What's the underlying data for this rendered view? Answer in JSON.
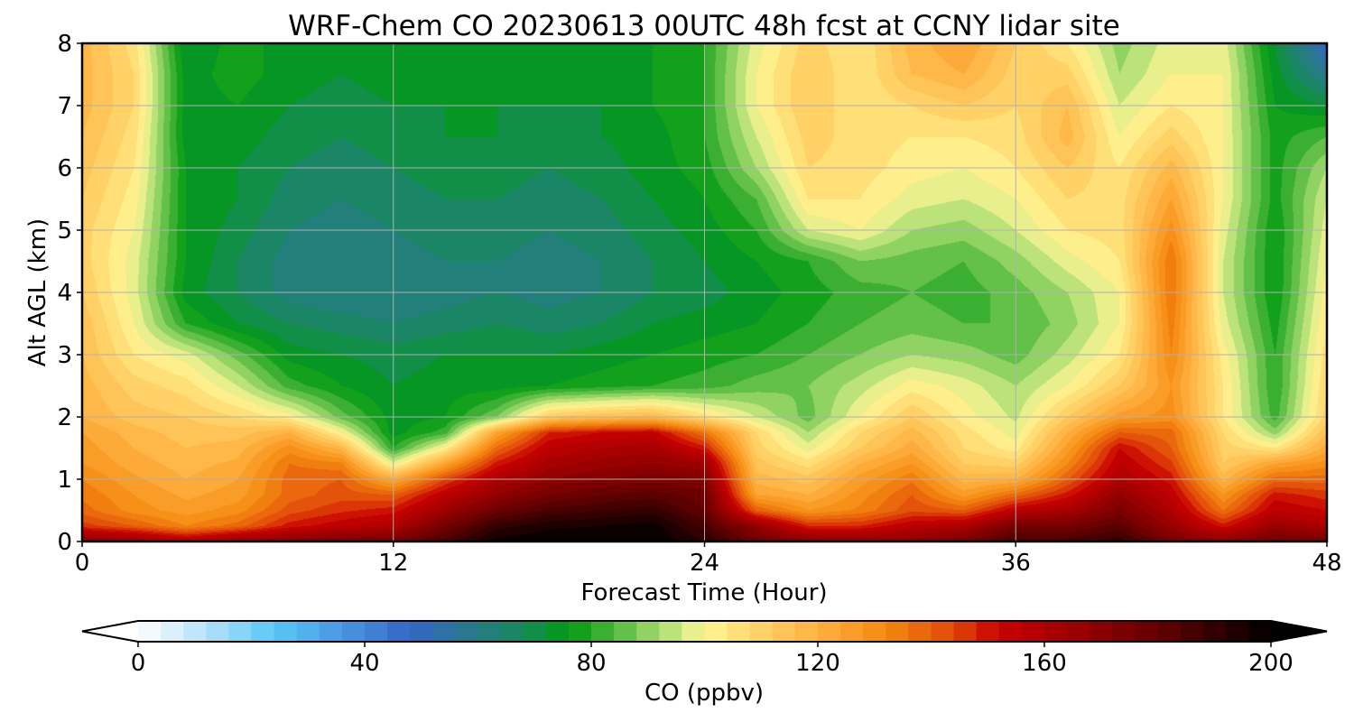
{
  "chart_data": {
    "type": "heatmap",
    "title": "WRF-Chem CO  20230613 00UTC 48h fcst at CCNY lidar site",
    "xlabel": "Forecast Time (Hour)",
    "ylabel": "Alt AGL (km)",
    "xlim": [
      0,
      48
    ],
    "ylim": [
      0,
      8
    ],
    "xticks": [
      0,
      12,
      24,
      36,
      48
    ],
    "yticks": [
      0,
      1,
      2,
      3,
      4,
      5,
      6,
      7,
      8
    ],
    "grid": true,
    "x": [
      0,
      2,
      4,
      6,
      8,
      10,
      12,
      14,
      16,
      18,
      20,
      22,
      24,
      26,
      28,
      30,
      32,
      34,
      36,
      38,
      40,
      42,
      44,
      46,
      48
    ],
    "y": [
      0,
      0.25,
      0.5,
      0.75,
      1,
      1.25,
      1.5,
      1.75,
      2,
      2.5,
      3,
      3.5,
      4,
      4.5,
      5,
      5.5,
      6,
      6.5,
      7,
      7.5,
      8
    ],
    "z": [
      [
        172,
        168,
        160,
        168,
        172,
        176,
        176,
        186,
        198,
        200,
        200,
        200,
        192,
        178,
        172,
        170,
        170,
        176,
        186,
        186,
        190,
        176,
        170,
        178,
        176
      ],
      [
        146,
        140,
        132,
        138,
        150,
        155,
        160,
        176,
        190,
        195,
        196,
        198,
        186,
        168,
        148,
        148,
        156,
        160,
        176,
        176,
        182,
        166,
        150,
        166,
        160
      ],
      [
        138,
        130,
        126,
        130,
        142,
        147,
        150,
        165,
        178,
        185,
        188,
        190,
        180,
        140,
        128,
        133,
        143,
        140,
        156,
        162,
        174,
        160,
        136,
        156,
        152
      ],
      [
        135,
        128,
        123,
        126,
        138,
        142,
        140,
        156,
        168,
        176,
        180,
        182,
        178,
        124,
        120,
        130,
        140,
        126,
        138,
        150,
        168,
        155,
        128,
        150,
        146
      ],
      [
        132,
        125,
        120,
        124,
        138,
        140,
        122,
        144,
        160,
        168,
        172,
        174,
        172,
        118,
        114,
        126,
        135,
        118,
        120,
        140,
        160,
        150,
        118,
        138,
        138
      ],
      [
        128,
        122,
        118,
        121,
        136,
        133,
        98,
        124,
        150,
        162,
        166,
        168,
        165,
        114,
        106,
        120,
        128,
        112,
        110,
        132,
        156,
        145,
        112,
        124,
        130
      ],
      [
        126,
        120,
        116,
        118,
        130,
        118,
        80,
        102,
        138,
        156,
        160,
        162,
        150,
        110,
        98,
        112,
        122,
        108,
        102,
        126,
        152,
        140,
        110,
        104,
        122
      ],
      [
        124,
        118,
        114,
        114,
        120,
        100,
        74,
        82,
        124,
        148,
        152,
        154,
        136,
        108,
        92,
        108,
        118,
        106,
        98,
        120,
        140,
        138,
        108,
        90,
        116
      ],
      [
        120,
        114,
        112,
        108,
        102,
        86,
        74,
        76,
        88,
        112,
        116,
        118,
        106,
        96,
        86,
        100,
        112,
        102,
        95,
        112,
        126,
        130,
        104,
        82,
        110
      ],
      [
        118,
        110,
        106,
        96,
        82,
        76,
        72,
        74,
        74,
        76,
        78,
        80,
        82,
        86,
        88,
        94,
        102,
        98,
        92,
        100,
        112,
        128,
        104,
        80,
        108
      ],
      [
        116,
        104,
        98,
        86,
        74,
        72,
        70,
        72,
        72,
        72,
        74,
        76,
        78,
        80,
        84,
        88,
        92,
        90,
        86,
        94,
        104,
        132,
        102,
        80,
        106
      ],
      [
        115,
        100,
        80,
        72,
        68,
        66,
        64,
        66,
        68,
        66,
        68,
        72,
        74,
        76,
        80,
        84,
        86,
        84,
        84,
        90,
        100,
        134,
        98,
        78,
        104
      ],
      [
        112,
        98,
        74,
        68,
        62,
        60,
        60,
        62,
        64,
        62,
        64,
        68,
        70,
        74,
        78,
        82,
        84,
        82,
        86,
        92,
        100,
        136,
        96,
        76,
        102
      ],
      [
        110,
        98,
        76,
        68,
        62,
        60,
        62,
        64,
        64,
        62,
        64,
        68,
        72,
        76,
        80,
        88,
        86,
        84,
        90,
        98,
        104,
        136,
        96,
        76,
        100
      ],
      [
        110,
        100,
        76,
        70,
        64,
        62,
        64,
        66,
        66,
        64,
        66,
        70,
        74,
        80,
        96,
        100,
        92,
        90,
        96,
        104,
        106,
        130,
        98,
        76,
        98
      ],
      [
        112,
        102,
        76,
        72,
        66,
        64,
        66,
        68,
        68,
        66,
        68,
        72,
        76,
        84,
        104,
        104,
        98,
        96,
        100,
        108,
        106,
        124,
        100,
        78,
        96
      ],
      [
        114,
        104,
        76,
        72,
        68,
        66,
        68,
        70,
        70,
        68,
        70,
        74,
        78,
        92,
        108,
        106,
        102,
        100,
        104,
        112,
        104,
        118,
        100,
        78,
        92
      ],
      [
        116,
        106,
        74,
        74,
        70,
        68,
        70,
        72,
        72,
        70,
        72,
        74,
        80,
        96,
        110,
        106,
        104,
        104,
        106,
        118,
        100,
        110,
        100,
        78,
        84
      ],
      [
        118,
        108,
        74,
        76,
        72,
        70,
        72,
        72,
        72,
        72,
        72,
        76,
        80,
        100,
        112,
        104,
        108,
        112,
        108,
        116,
        96,
        104,
        100,
        76,
        72
      ],
      [
        118,
        108,
        74,
        78,
        74,
        72,
        74,
        72,
        72,
        72,
        72,
        76,
        80,
        100,
        112,
        104,
        116,
        120,
        110,
        110,
        92,
        100,
        100,
        74,
        58
      ],
      [
        118,
        106,
        72,
        78,
        74,
        72,
        74,
        72,
        72,
        72,
        72,
        76,
        80,
        98,
        110,
        104,
        118,
        124,
        112,
        104,
        90,
        98,
        98,
        72,
        48
      ]
    ],
    "colorbar": {
      "label": "CO  (ppbv)",
      "min": 0,
      "max": 200,
      "step": 4,
      "ticks": [
        0,
        40,
        80,
        120,
        160,
        200
      ],
      "extend": "both",
      "stops": [
        {
          "v": 0,
          "c": "#ffffff"
        },
        {
          "v": 12,
          "c": "#b4e1fa"
        },
        {
          "v": 24,
          "c": "#5ac8f5"
        },
        {
          "v": 36,
          "c": "#4a97e2"
        },
        {
          "v": 48,
          "c": "#3366c6"
        },
        {
          "v": 58,
          "c": "#2a7890"
        },
        {
          "v": 68,
          "c": "#178a5a"
        },
        {
          "v": 76,
          "c": "#009a10"
        },
        {
          "v": 84,
          "c": "#4db63c"
        },
        {
          "v": 92,
          "c": "#a6dd70"
        },
        {
          "v": 100,
          "c": "#fff596"
        },
        {
          "v": 108,
          "c": "#ffd76e"
        },
        {
          "v": 120,
          "c": "#ffb040"
        },
        {
          "v": 132,
          "c": "#f48a10"
        },
        {
          "v": 144,
          "c": "#e04808"
        },
        {
          "v": 152,
          "c": "#c80000"
        },
        {
          "v": 164,
          "c": "#a00000"
        },
        {
          "v": 180,
          "c": "#640000"
        },
        {
          "v": 192,
          "c": "#280000"
        },
        {
          "v": 200,
          "c": "#000000"
        }
      ]
    }
  }
}
